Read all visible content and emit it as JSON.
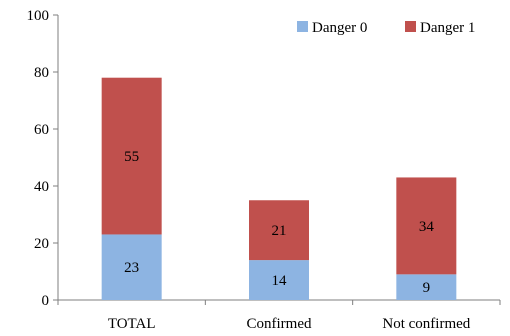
{
  "chart_data": {
    "type": "bar",
    "stacked": true,
    "categories": [
      "TOTAL",
      "Confirmed",
      "Not confirmed"
    ],
    "series": [
      {
        "name": "Danger 0",
        "values": [
          23,
          14,
          9
        ],
        "color": "#8db4e2"
      },
      {
        "name": "Danger 1",
        "values": [
          55,
          21,
          34
        ],
        "color": "#c0504d"
      }
    ],
    "title": "",
    "xlabel": "",
    "ylabel": "",
    "ylim": [
      0,
      100
    ],
    "yticks": [
      0,
      20,
      40,
      60,
      80,
      100
    ],
    "grid": false,
    "legend_position": "top-right"
  }
}
